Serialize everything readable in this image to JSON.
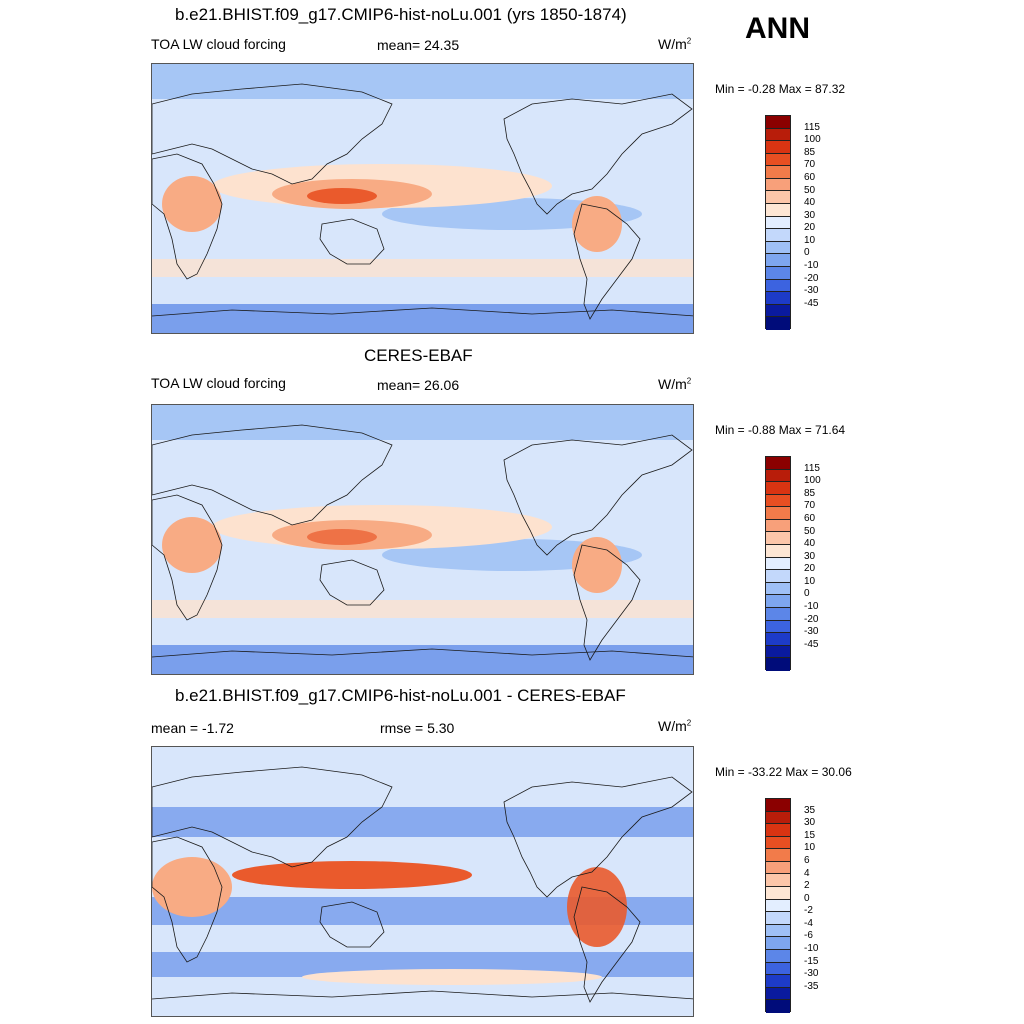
{
  "season": "ANN",
  "panels": [
    {
      "id": "model",
      "title": "b.e21.BHIST.f09_g17.CMIP6-hist-noLu.001 (yrs 1850-1874)",
      "left_label": "TOA LW cloud forcing",
      "center_label": "mean=  24.35",
      "unit_base": "W/m",
      "unit_sup": "2",
      "minmax": "Min =  -0.28 Max =  87.32"
    },
    {
      "id": "obs",
      "title": "CERES-EBAF",
      "left_label": "TOA LW cloud forcing",
      "center_label": "mean=  26.06",
      "unit_base": "W/m",
      "unit_sup": "2",
      "minmax": "Min =  -0.88 Max =  71.64"
    },
    {
      "id": "diff",
      "title": "b.e21.BHIST.f09_g17.CMIP6-hist-noLu.001 - CERES-EBAF",
      "left_label": "mean =  -1.72",
      "center_label": "rmse =   5.30",
      "unit_base": "W/m",
      "unit_sup": "2",
      "minmax": "Min = -33.22 Max =  30.06"
    }
  ],
  "chart_data": [
    {
      "type": "heatmap",
      "title": "b.e21.BHIST.f09_g17.CMIP6-hist-noLu.001 (yrs 1850-1874)",
      "field": "TOA LW cloud forcing",
      "units": "W/m2",
      "mean": 24.35,
      "min": -0.28,
      "max": 87.32,
      "colorbar_levels": [
        "115",
        "100",
        "85",
        "70",
        "60",
        "50",
        "40",
        "30",
        "20",
        "10",
        "0",
        "-10",
        "-20",
        "-30",
        "-45"
      ]
    },
    {
      "type": "heatmap",
      "title": "CERES-EBAF",
      "field": "TOA LW cloud forcing",
      "units": "W/m2",
      "mean": 26.06,
      "min": -0.88,
      "max": 71.64,
      "colorbar_levels": [
        "115",
        "100",
        "85",
        "70",
        "60",
        "50",
        "40",
        "30",
        "20",
        "10",
        "0",
        "-10",
        "-20",
        "-30",
        "-45"
      ]
    },
    {
      "type": "heatmap",
      "title": "b.e21.BHIST.f09_g17.CMIP6-hist-noLu.001 - CERES-EBAF",
      "units": "W/m2",
      "mean": -1.72,
      "rmse": 5.3,
      "min": -33.22,
      "max": 30.06,
      "colorbar_levels": [
        "35",
        "30",
        "15",
        "10",
        "6",
        "4",
        "2",
        "0",
        "-2",
        "-4",
        "-6",
        "-10",
        "-15",
        "-30",
        "-35"
      ]
    }
  ],
  "colorbar_colors": [
    "#8b0000",
    "#b81d0a",
    "#d93412",
    "#e84f22",
    "#f27b4a",
    "#f8a07a",
    "#fcc6a9",
    "#fde6d4",
    "#e3eeff",
    "#c3d8fb",
    "#9fc0f6",
    "#7ea6ef",
    "#5c86e8",
    "#3c63e0",
    "#1d3bc8",
    "#0a1a9e",
    "#000c7a"
  ],
  "map_colors": {
    "ocean_low": "#a6c6f5",
    "ocean_mid": "#d8e6fb",
    "blue_band": "#7a9fec",
    "warm_light": "#fde2cf",
    "warm_mid": "#f8ab84",
    "warm_high": "#ea5a2c",
    "warm_max": "#cc2a10",
    "coast": "#1a1a1a"
  }
}
